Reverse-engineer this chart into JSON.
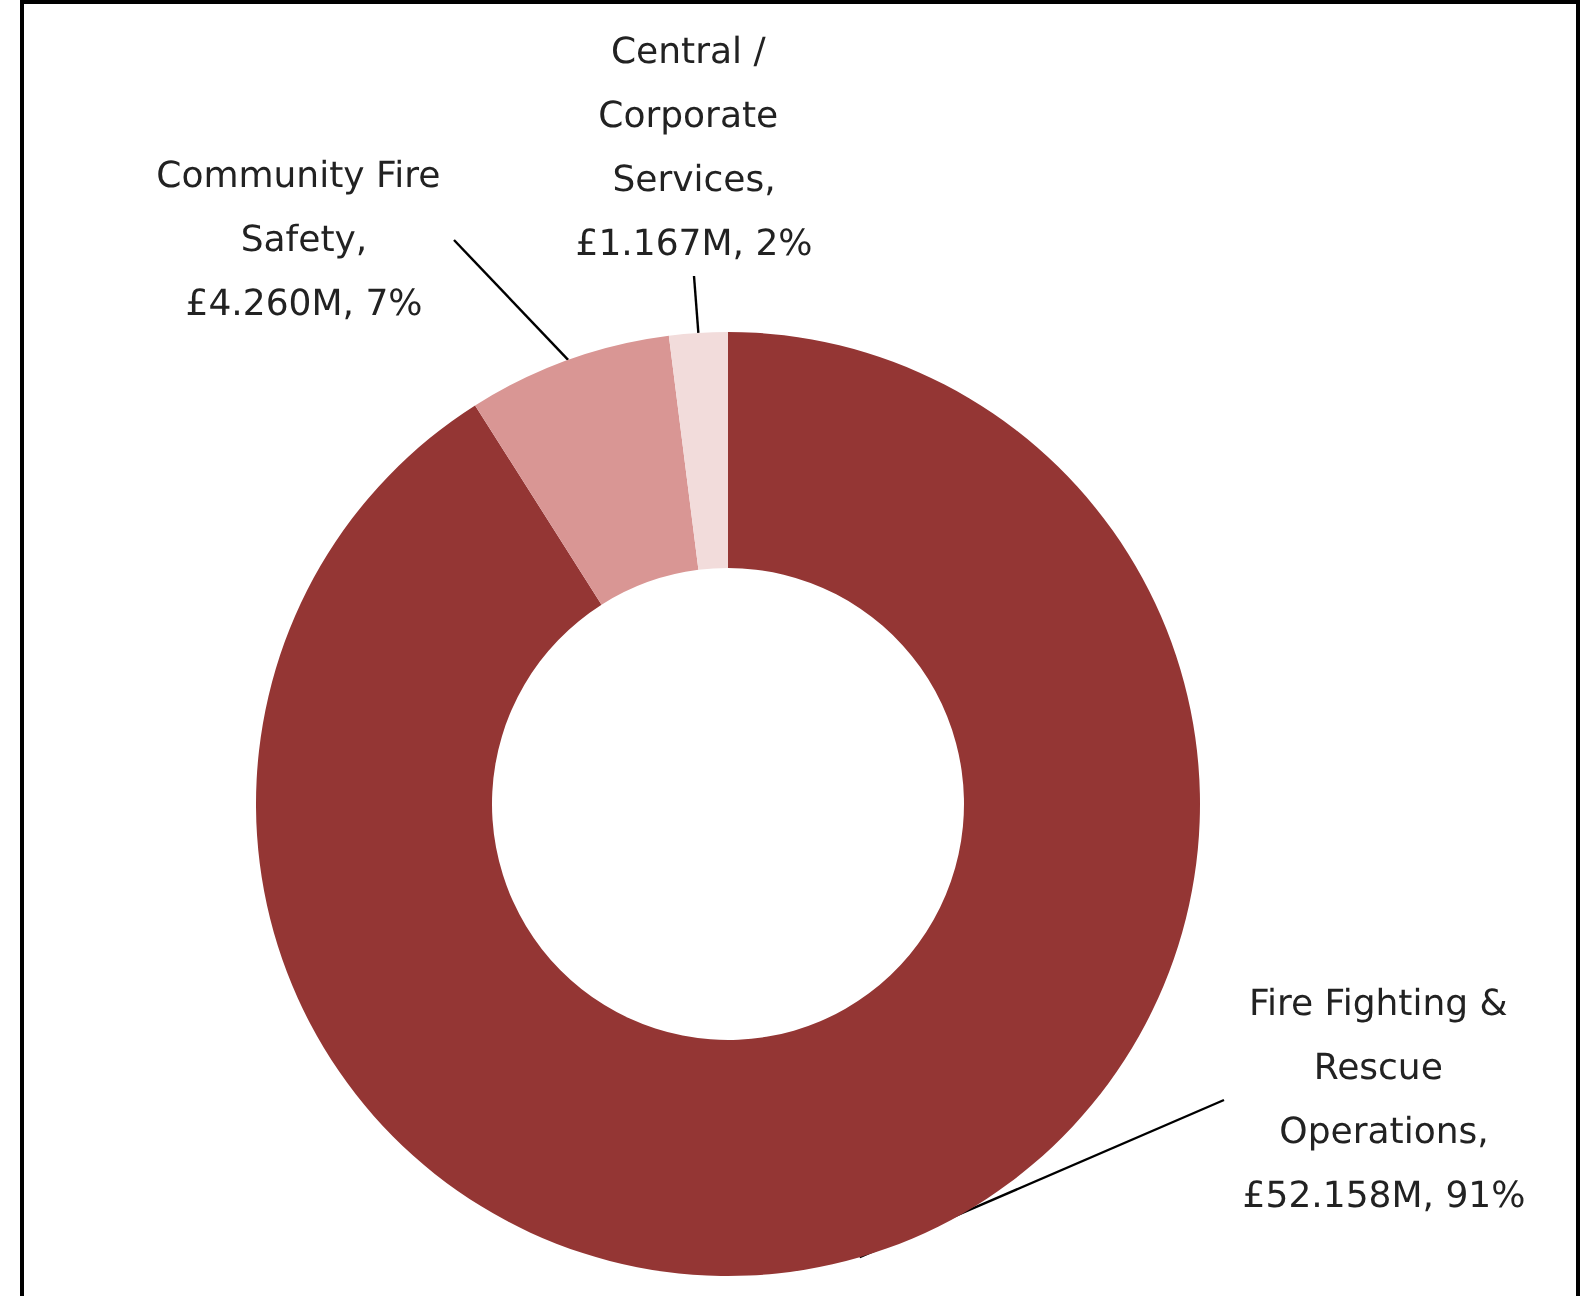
{
  "chart_data": {
    "type": "donut",
    "categories": [
      "Fire Fighting & Rescue Operations",
      "Community Fire Safety",
      "Central / Corporate Services"
    ],
    "values": [
      91,
      7,
      2
    ],
    "value_labels": [
      ",\n£52.158M, 91%",
      ",\n£4.260M, 7%",
      ",\n£1.167M, 2%"
    ],
    "colors": [
      "#943634",
      "#d99694",
      "#f2dcdb"
    ],
    "legend": false
  }
}
